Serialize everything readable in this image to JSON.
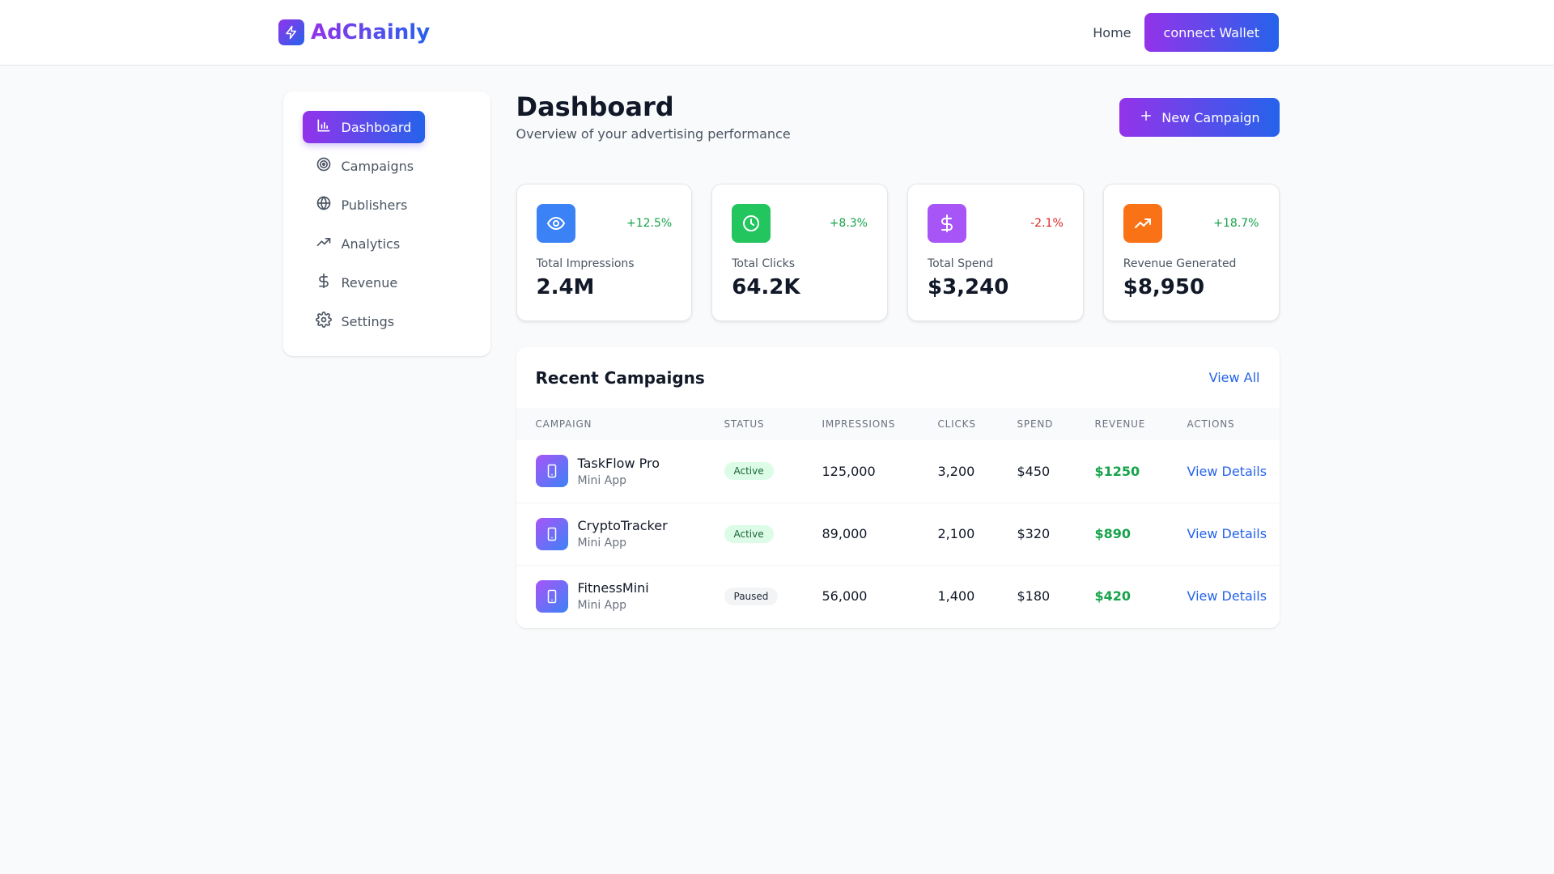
{
  "app": {
    "name": "AdChainly"
  },
  "header": {
    "home_label": "Home",
    "wallet_label": "connect Wallet"
  },
  "sidebar": {
    "items": [
      {
        "label": "Dashboard",
        "icon": "bar-chart-icon",
        "active": true
      },
      {
        "label": "Campaigns",
        "icon": "target-icon"
      },
      {
        "label": "Publishers",
        "icon": "globe-icon"
      },
      {
        "label": "Analytics",
        "icon": "trending-up-icon"
      },
      {
        "label": "Revenue",
        "icon": "dollar-icon"
      },
      {
        "label": "Settings",
        "icon": "gear-icon"
      }
    ]
  },
  "main": {
    "title": "Dashboard",
    "subtitle": "Overview of your advertising performance",
    "new_campaign_label": "New Campaign"
  },
  "stats": [
    {
      "label": "Total Impressions",
      "value": "2.4M",
      "change": "+12.5%",
      "icon": "eye-icon",
      "color": "#3b82f6",
      "change_color": "#16a34a"
    },
    {
      "label": "Total Clicks",
      "value": "64.2K",
      "change": "+8.3%",
      "icon": "clock-icon",
      "color": "#22c55e",
      "change_color": "#16a34a"
    },
    {
      "label": "Total Spend",
      "value": "$3,240",
      "change": "-2.1%",
      "icon": "dollar-icon",
      "color": "#a855f7",
      "change_color": "#dc2626"
    },
    {
      "label": "Revenue Generated",
      "value": "$8,950",
      "change": "+18.7%",
      "icon": "trending-up-icon",
      "color": "#f97316",
      "change_color": "#16a34a"
    }
  ],
  "campaigns": {
    "title": "Recent Campaigns",
    "view_all_label": "View All",
    "columns": [
      "CAMPAIGN",
      "STATUS",
      "IMPRESSIONS",
      "CLICKS",
      "SPEND",
      "REVENUE",
      "ACTIONS"
    ],
    "rows": [
      {
        "name": "TaskFlow Pro",
        "type": "Mini App",
        "status": "Active",
        "impressions": "125,000",
        "clicks": "3,200",
        "spend": "$450",
        "revenue": "$1250",
        "action": "View Details"
      },
      {
        "name": "CryptoTracker",
        "type": "Mini App",
        "status": "Active",
        "impressions": "89,000",
        "clicks": "2,100",
        "spend": "$320",
        "revenue": "$890",
        "action": "View Details"
      },
      {
        "name": "FitnessMini",
        "type": "Mini App",
        "status": "Paused",
        "impressions": "56,000",
        "clicks": "1,400",
        "spend": "$180",
        "revenue": "$420",
        "action": "View Details"
      }
    ]
  }
}
